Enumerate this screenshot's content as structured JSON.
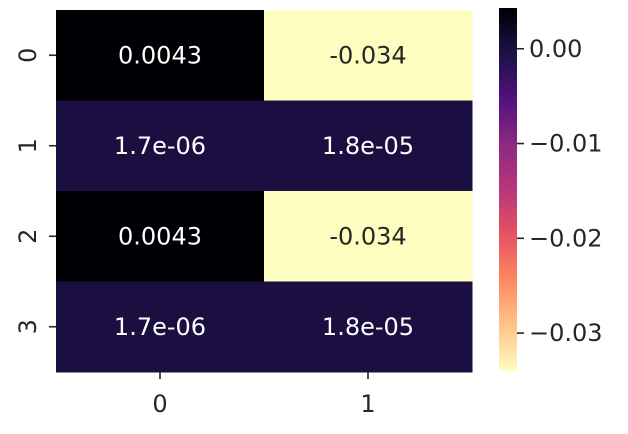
{
  "chart_data": {
    "type": "heatmap",
    "title": "",
    "xlabel": "",
    "ylabel": "",
    "x_tick_labels": [
      "0",
      "1"
    ],
    "y_tick_labels": [
      "0",
      "1",
      "2",
      "3"
    ],
    "values": [
      [
        0.0043,
        -0.034
      ],
      [
        1.7e-06,
        1.8e-05
      ],
      [
        0.0043,
        -0.034
      ],
      [
        1.7e-06,
        1.8e-05
      ]
    ],
    "annotations": [
      [
        "0.0043",
        "-0.034"
      ],
      [
        "1.7e-06",
        "1.8e-05"
      ],
      [
        "0.0043",
        "-0.034"
      ],
      [
        "1.7e-06",
        "1.8e-05"
      ]
    ],
    "colormap": "magma",
    "colorbar": {
      "range": [
        -0.034,
        0.0043
      ],
      "ticks": [
        0.0,
        -0.01,
        -0.02,
        -0.03
      ],
      "tick_labels": [
        "0.00",
        "−0.01",
        "−0.02",
        "−0.03"
      ],
      "placement": "right"
    },
    "colors": {
      "high": "#000004",
      "low": "#fcfdbf",
      "mid_dark": "#1d1147"
    }
  }
}
